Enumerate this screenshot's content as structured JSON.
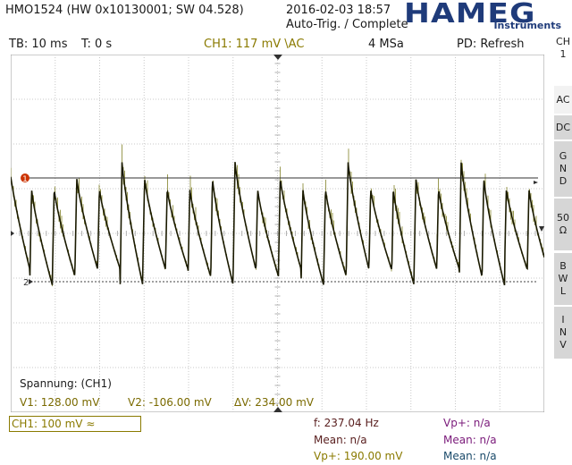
{
  "header": {
    "device": "HMO1524 (HW 0x10130001; SW 04.528)",
    "datetime": "2016-02-03 18:57",
    "trigger_status": "Auto-Trig. / Complete",
    "brand": "HAMEG",
    "brand_sub": "Instruments"
  },
  "infobar": {
    "timebase": "TB: 10 ms",
    "trigger_time": "T: 0 s",
    "ch1_trigger": "CH1: 117 mV \\AC",
    "sample_rate": "4 MSa",
    "pd": "PD: Refresh"
  },
  "sidebar": {
    "channel": "CH\n1",
    "items": [
      {
        "label": "AC",
        "selected": true
      },
      {
        "label": "DC",
        "selected": false
      },
      {
        "label": "G\nN\nD",
        "selected": false
      },
      {
        "label": "50\nΩ",
        "selected": false
      },
      {
        "label": "B\nW\nL",
        "selected": false
      },
      {
        "label": "I\nN\nV",
        "selected": false
      }
    ]
  },
  "cursor_box": {
    "title": "Spannung: (CH1)",
    "v1": "V1: 128.00 mV",
    "v2": "V2: -106.00 mV",
    "dv": "ΔV: 234.00 mV"
  },
  "markers": {
    "cursor1": "1",
    "cursor2": "2",
    "ch_ref": "1"
  },
  "footer": {
    "ch1_scale": "CH1: 100 mV ≈",
    "col1": [
      "f: 237.04 Hz",
      "Mean: n/a",
      "Vp+: 190.00 mV"
    ],
    "col2": [
      "Vp+: n/a",
      "Mean: n/a",
      "Mean: n/a"
    ]
  },
  "colors": {
    "trace": "#6b6b00",
    "grid": "#c8c8c8",
    "cursor_line": "#303030",
    "cursor_marker": "#cc3300",
    "accent": "#8a7a00"
  }
}
